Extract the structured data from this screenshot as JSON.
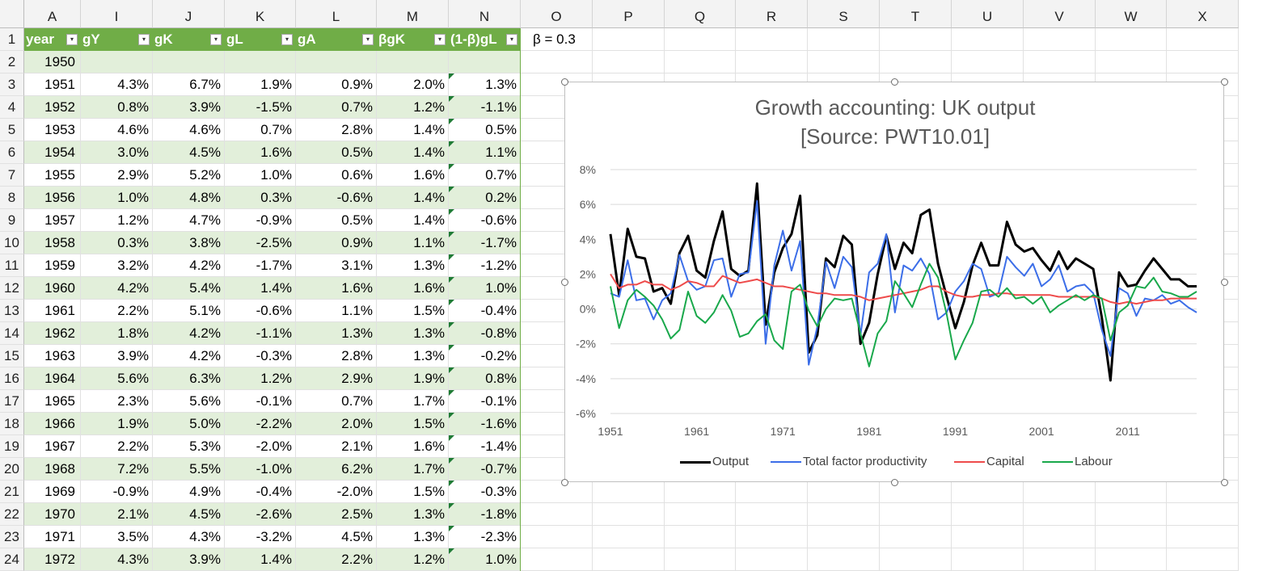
{
  "sheet": {
    "column_letters": [
      "A",
      "I",
      "J",
      "K",
      "L",
      "M",
      "N",
      "O",
      "P",
      "Q",
      "R",
      "S",
      "T",
      "U",
      "V",
      "W",
      "X"
    ],
    "header_row_label": "1",
    "table_headers": [
      "year",
      "gY",
      "gK",
      "gL",
      "gA",
      "βgK",
      "(1-β)gL"
    ],
    "beta_label": "β = 0.3",
    "rows": [
      {
        "row": "2",
        "year": "1950",
        "cells": [
          "",
          "",
          "",
          "",
          "",
          ""
        ]
      },
      {
        "row": "3",
        "year": "1951",
        "cells": [
          "4.3%",
          "6.7%",
          "1.9%",
          "0.9%",
          "2.0%",
          "1.3%"
        ]
      },
      {
        "row": "4",
        "year": "1952",
        "cells": [
          "0.8%",
          "3.9%",
          "-1.5%",
          "0.7%",
          "1.2%",
          "-1.1%"
        ]
      },
      {
        "row": "5",
        "year": "1953",
        "cells": [
          "4.6%",
          "4.6%",
          "0.7%",
          "2.8%",
          "1.4%",
          "0.5%"
        ]
      },
      {
        "row": "6",
        "year": "1954",
        "cells": [
          "3.0%",
          "4.5%",
          "1.6%",
          "0.5%",
          "1.4%",
          "1.1%"
        ]
      },
      {
        "row": "7",
        "year": "1955",
        "cells": [
          "2.9%",
          "5.2%",
          "1.0%",
          "0.6%",
          "1.6%",
          "0.7%"
        ]
      },
      {
        "row": "8",
        "year": "1956",
        "cells": [
          "1.0%",
          "4.8%",
          "0.3%",
          "-0.6%",
          "1.4%",
          "0.2%"
        ]
      },
      {
        "row": "9",
        "year": "1957",
        "cells": [
          "1.2%",
          "4.7%",
          "-0.9%",
          "0.5%",
          "1.4%",
          "-0.6%"
        ]
      },
      {
        "row": "10",
        "year": "1958",
        "cells": [
          "0.3%",
          "3.8%",
          "-2.5%",
          "0.9%",
          "1.1%",
          "-1.7%"
        ]
      },
      {
        "row": "11",
        "year": "1959",
        "cells": [
          "3.2%",
          "4.2%",
          "-1.7%",
          "3.1%",
          "1.3%",
          "-1.2%"
        ]
      },
      {
        "row": "12",
        "year": "1960",
        "cells": [
          "4.2%",
          "5.4%",
          "1.4%",
          "1.6%",
          "1.6%",
          "1.0%"
        ]
      },
      {
        "row": "13",
        "year": "1961",
        "cells": [
          "2.2%",
          "5.1%",
          "-0.6%",
          "1.1%",
          "1.5%",
          "-0.4%"
        ]
      },
      {
        "row": "14",
        "year": "1962",
        "cells": [
          "1.8%",
          "4.2%",
          "-1.1%",
          "1.3%",
          "1.3%",
          "-0.8%"
        ]
      },
      {
        "row": "15",
        "year": "1963",
        "cells": [
          "3.9%",
          "4.2%",
          "-0.3%",
          "2.8%",
          "1.3%",
          "-0.2%"
        ]
      },
      {
        "row": "16",
        "year": "1964",
        "cells": [
          "5.6%",
          "6.3%",
          "1.2%",
          "2.9%",
          "1.9%",
          "0.8%"
        ]
      },
      {
        "row": "17",
        "year": "1965",
        "cells": [
          "2.3%",
          "5.6%",
          "-0.1%",
          "0.7%",
          "1.7%",
          "-0.1%"
        ]
      },
      {
        "row": "18",
        "year": "1966",
        "cells": [
          "1.9%",
          "5.0%",
          "-2.2%",
          "2.0%",
          "1.5%",
          "-1.6%"
        ]
      },
      {
        "row": "19",
        "year": "1967",
        "cells": [
          "2.2%",
          "5.3%",
          "-2.0%",
          "2.1%",
          "1.6%",
          "-1.4%"
        ]
      },
      {
        "row": "20",
        "year": "1968",
        "cells": [
          "7.2%",
          "5.5%",
          "-1.0%",
          "6.2%",
          "1.7%",
          "-0.7%"
        ]
      },
      {
        "row": "21",
        "year": "1969",
        "cells": [
          "-0.9%",
          "4.9%",
          "-0.4%",
          "-2.0%",
          "1.5%",
          "-0.3%"
        ]
      },
      {
        "row": "22",
        "year": "1970",
        "cells": [
          "2.1%",
          "4.5%",
          "-2.6%",
          "2.5%",
          "1.3%",
          "-1.8%"
        ]
      },
      {
        "row": "23",
        "year": "1971",
        "cells": [
          "3.5%",
          "4.3%",
          "-3.2%",
          "4.5%",
          "1.3%",
          "-2.3%"
        ]
      },
      {
        "row": "24",
        "year": "1972",
        "cells": [
          "4.3%",
          "3.9%",
          "1.4%",
          "2.2%",
          "1.2%",
          "1.0%"
        ]
      }
    ]
  },
  "chart_data": {
    "type": "line",
    "title_line1": "Growth accounting: UK output",
    "title_line2": "[Source: PWT10.01]",
    "ylim": [
      -6,
      8
    ],
    "yticks": [
      -6,
      -4,
      -2,
      0,
      2,
      4,
      6,
      8
    ],
    "ytick_labels": [
      "-6%",
      "-4%",
      "-2%",
      "0%",
      "2%",
      "4%",
      "6%",
      "8%"
    ],
    "xlim": [
      1951,
      2019
    ],
    "xticks": [
      1951,
      1961,
      1971,
      1981,
      1991,
      2001,
      2011
    ],
    "xtick_labels": [
      "1951",
      "1961",
      "1971",
      "1981",
      "1991",
      "2001",
      "2011"
    ],
    "grid": true,
    "legend_position": "bottom",
    "x": [
      1951,
      1952,
      1953,
      1954,
      1955,
      1956,
      1957,
      1958,
      1959,
      1960,
      1961,
      1962,
      1963,
      1964,
      1965,
      1966,
      1967,
      1968,
      1969,
      1970,
      1971,
      1972,
      1973,
      1974,
      1975,
      1976,
      1977,
      1978,
      1979,
      1980,
      1981,
      1982,
      1983,
      1984,
      1985,
      1986,
      1987,
      1988,
      1989,
      1990,
      1991,
      1992,
      1993,
      1994,
      1995,
      1996,
      1997,
      1998,
      1999,
      2000,
      2001,
      2002,
      2003,
      2004,
      2005,
      2006,
      2007,
      2008,
      2009,
      2010,
      2011,
      2012,
      2013,
      2014,
      2015,
      2016,
      2017,
      2018,
      2019
    ],
    "series": [
      {
        "name": "Output",
        "color": "#000000",
        "width": 3,
        "values": [
          4.3,
          0.8,
          4.6,
          3.0,
          2.9,
          1.0,
          1.2,
          0.3,
          3.2,
          4.2,
          2.2,
          1.8,
          3.9,
          5.6,
          2.3,
          1.9,
          2.2,
          7.2,
          -0.9,
          2.1,
          3.5,
          4.3,
          6.5,
          -2.5,
          -1.5,
          2.9,
          2.4,
          4.2,
          3.7,
          -2.0,
          -0.8,
          2.0,
          4.2,
          2.3,
          3.8,
          3.2,
          5.4,
          5.7,
          2.6,
          0.7,
          -1.1,
          0.4,
          2.5,
          3.8,
          2.5,
          2.5,
          5.0,
          3.7,
          3.3,
          3.5,
          2.8,
          2.2,
          3.3,
          2.3,
          2.9,
          2.6,
          2.3,
          -0.5,
          -4.1,
          2.1,
          1.3,
          1.4,
          2.2,
          2.9,
          2.3,
          1.7,
          1.7,
          1.3,
          1.3
        ]
      },
      {
        "name": "Total factor productivity",
        "color": "#3c6ee8",
        "width": 2,
        "values": [
          0.9,
          0.7,
          2.8,
          0.5,
          0.6,
          -0.6,
          0.5,
          0.9,
          3.1,
          1.6,
          1.1,
          1.3,
          2.8,
          2.9,
          0.7,
          2.0,
          2.1,
          6.2,
          -2.0,
          2.5,
          4.5,
          2.2,
          3.9,
          -3.2,
          -1.0,
          2.7,
          1.2,
          3.0,
          2.4,
          -1.5,
          2.1,
          2.6,
          4.3,
          -0.2,
          2.5,
          2.2,
          2.9,
          2.0,
          -0.6,
          -0.2,
          1.0,
          1.6,
          2.6,
          2.3,
          0.7,
          0.9,
          3.0,
          2.4,
          1.9,
          2.6,
          1.3,
          1.7,
          2.5,
          1.0,
          1.3,
          1.4,
          0.9,
          -1.2,
          -2.7,
          1.2,
          0.9,
          -0.4,
          0.6,
          0.5,
          0.8,
          0.3,
          0.5,
          0.1,
          -0.2
        ]
      },
      {
        "name": "Capital",
        "color": "#ee4b4b",
        "width": 2,
        "values": [
          2.0,
          1.2,
          1.4,
          1.4,
          1.6,
          1.4,
          1.4,
          1.1,
          1.3,
          1.6,
          1.5,
          1.3,
          1.3,
          1.9,
          1.7,
          1.5,
          1.6,
          1.7,
          1.5,
          1.3,
          1.3,
          1.2,
          1.1,
          1.0,
          0.9,
          0.9,
          0.8,
          0.8,
          0.8,
          0.7,
          0.5,
          0.6,
          0.7,
          0.8,
          0.9,
          1.0,
          1.1,
          1.3,
          1.3,
          1.0,
          0.8,
          0.7,
          0.7,
          0.8,
          0.8,
          0.9,
          0.9,
          0.8,
          0.8,
          0.8,
          0.8,
          0.8,
          0.7,
          0.7,
          0.7,
          0.7,
          0.7,
          0.6,
          0.4,
          0.3,
          0.4,
          0.3,
          0.4,
          0.5,
          0.5,
          0.6,
          0.6,
          0.6,
          0.6
        ]
      },
      {
        "name": "Labour",
        "color": "#19a84b",
        "width": 2,
        "values": [
          1.3,
          -1.1,
          0.5,
          1.1,
          0.7,
          0.2,
          -0.6,
          -1.7,
          -1.2,
          1.0,
          -0.4,
          -0.8,
          -0.2,
          0.8,
          -0.1,
          -1.6,
          -1.4,
          -0.7,
          -0.3,
          -1.8,
          -2.3,
          1.0,
          1.4,
          -0.1,
          -1.0,
          0.0,
          0.6,
          0.5,
          0.6,
          -1.4,
          -3.3,
          -1.4,
          -0.7,
          1.6,
          0.9,
          0.1,
          1.4,
          2.6,
          1.8,
          -0.3,
          -2.9,
          -1.8,
          -0.8,
          1.0,
          1.1,
          0.7,
          1.2,
          0.6,
          0.7,
          0.3,
          0.7,
          -0.2,
          0.2,
          0.5,
          0.8,
          0.5,
          0.8,
          0.6,
          -1.8,
          -0.2,
          0.2,
          1.3,
          1.2,
          1.8,
          1.0,
          0.9,
          0.7,
          0.7,
          1.0
        ]
      }
    ]
  }
}
